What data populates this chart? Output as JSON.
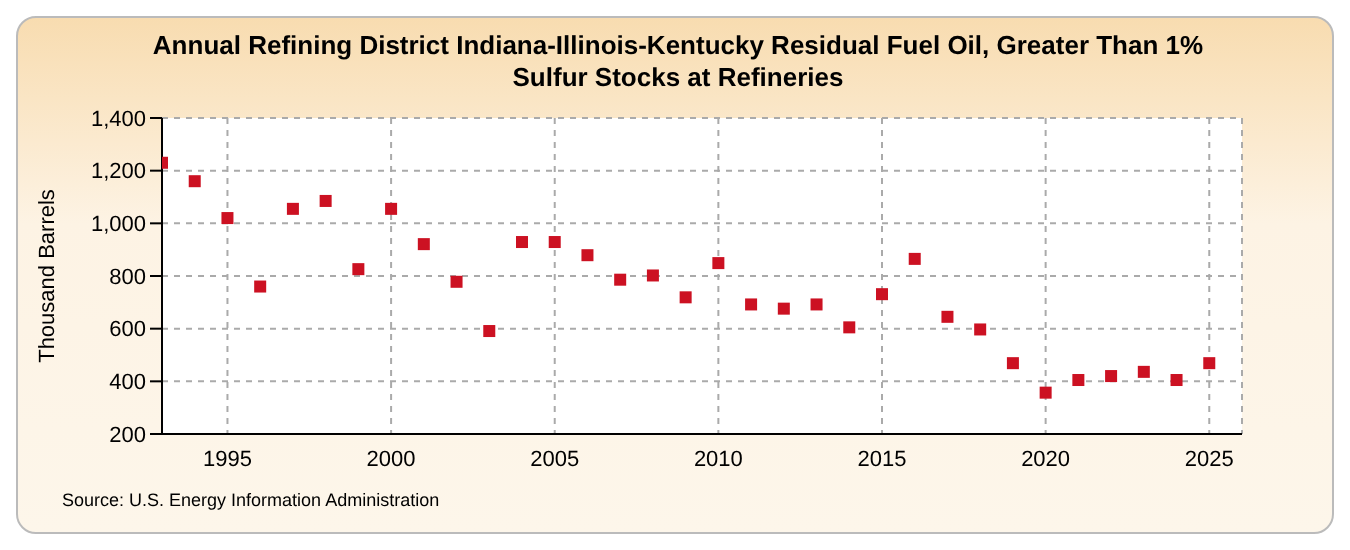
{
  "chart_data": {
    "type": "scatter",
    "title": "Annual Refining District Indiana-Illinois-Kentucky Residual Fuel Oil, Greater Than 1% Sulfur Stocks at Refineries",
    "ylabel": "Thousand Barrels",
    "x": [
      1993,
      1994,
      1995,
      1996,
      1997,
      1998,
      1999,
      2000,
      2001,
      2002,
      2003,
      2004,
      2005,
      2006,
      2007,
      2008,
      2009,
      2010,
      2011,
      2012,
      2013,
      2014,
      2015,
      2016,
      2017,
      2018,
      2019,
      2020,
      2021,
      2022,
      2023,
      2024,
      2025
    ],
    "series": [
      {
        "color": "#cc1122",
        "values": [
          1230,
          1160,
          1020,
          760,
          1055,
          1085,
          826,
          1055,
          921,
          778,
          591,
          929,
          929,
          879,
          786,
          802,
          719,
          849,
          692,
          676,
          692,
          605,
          731,
          865,
          645,
          597,
          469,
          357,
          405,
          420,
          436,
          405,
          469
        ]
      }
    ],
    "xlim": [
      1993,
      2026
    ],
    "xticks": [
      1995,
      2000,
      2005,
      2010,
      2015,
      2020,
      2025
    ],
    "ylim": [
      200,
      1400
    ],
    "yticks": [
      {
        "value": 200,
        "label": "200"
      },
      {
        "value": 400,
        "label": "400"
      },
      {
        "value": 600,
        "label": "600"
      },
      {
        "value": 800,
        "label": "800"
      },
      {
        "value": 1000,
        "label": "1,000"
      },
      {
        "value": 1200,
        "label": "1,200"
      },
      {
        "value": 1400,
        "label": "1,400"
      }
    ],
    "grid": true,
    "marker": "square",
    "annotations": [
      "Source: U.S. Energy Information Administration"
    ]
  }
}
